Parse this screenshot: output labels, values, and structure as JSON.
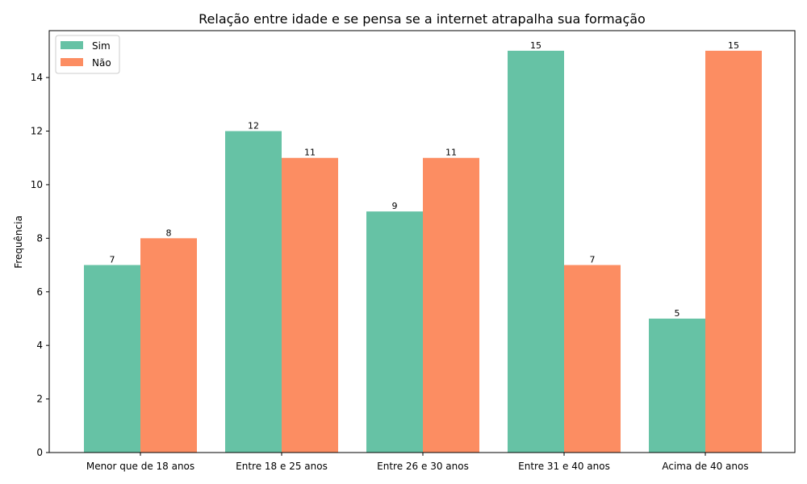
{
  "chart_data": {
    "type": "bar",
    "title": "Relação entre idade e se pensa se a internet atrapalha sua formação",
    "xlabel": "",
    "ylabel": "Frequência",
    "categories": [
      "Menor que de 18 anos",
      "Entre 18 e 25 anos",
      "Entre 26 e 30 anos",
      "Entre 31 e 40 anos",
      "Acima de 40 anos"
    ],
    "series": [
      {
        "name": "Sim",
        "values": [
          7,
          12,
          9,
          15,
          5
        ],
        "color": "#66c2a5"
      },
      {
        "name": "Não",
        "values": [
          8,
          11,
          11,
          7,
          15
        ],
        "color": "#fc8d62"
      }
    ],
    "ylim": [
      0,
      15.75
    ],
    "yticks": [
      0,
      2,
      4,
      6,
      8,
      10,
      12,
      14
    ],
    "legend_position": "top-left",
    "grid": false
  }
}
